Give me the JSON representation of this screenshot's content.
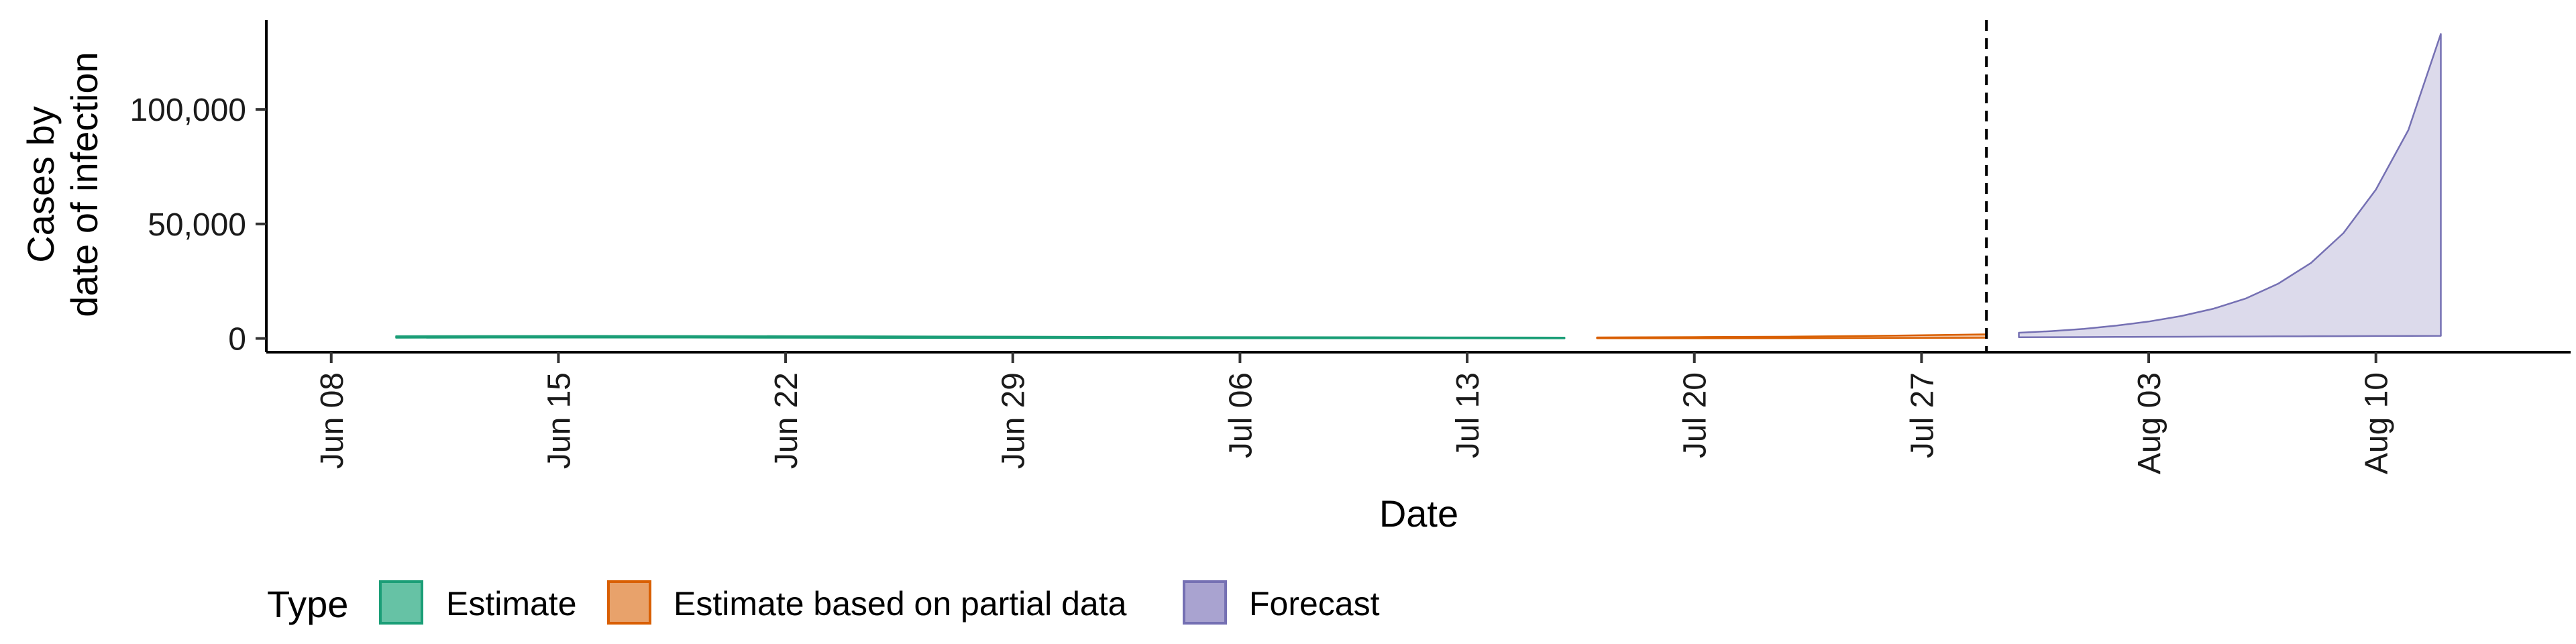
{
  "chart_data": {
    "type": "area",
    "xlabel": "Date",
    "ylabel_lines": [
      "Cases by",
      "date of infection"
    ],
    "x_ticks": [
      "2020-06-08",
      "2020-06-15",
      "2020-06-22",
      "2020-06-29",
      "2020-07-06",
      "2020-07-13",
      "2020-07-20",
      "2020-07-27",
      "2020-08-03",
      "2020-08-10"
    ],
    "x_tick_labels": [
      "Jun 08",
      "Jun 15",
      "Jun 22",
      "Jun 29",
      "Jul 06",
      "Jul 13",
      "Jul 20",
      "Jul 27",
      "Aug 03",
      "Aug 10"
    ],
    "xlim": [
      "2020-06-06",
      "2020-08-16"
    ],
    "y_ticks": [
      0,
      50000,
      100000
    ],
    "y_tick_labels": [
      "0",
      "50,000",
      "100,000"
    ],
    "ylim": [
      -6000,
      139000
    ],
    "grid": false,
    "vline_date": "2020-07-29",
    "legend": {
      "title": "Type",
      "position": "bottom",
      "entries": [
        {
          "label": "Estimate",
          "fill": "#66c2a5",
          "stroke": "#1b9e77"
        },
        {
          "label": "Estimate based on partial data",
          "fill": "#e8a26b",
          "stroke": "#d95f02"
        },
        {
          "label": "Forecast",
          "fill": "#a9a3d0",
          "stroke": "#7570b3"
        }
      ]
    },
    "series": [
      {
        "type_key": "Estimate",
        "color": "#1b9e77",
        "fill": "#a9dcc9",
        "x": [
          "2020-06-10",
          "2020-06-13",
          "2020-06-16",
          "2020-06-19",
          "2020-06-22",
          "2020-06-25",
          "2020-06-28",
          "2020-07-01",
          "2020-07-04",
          "2020-07-07",
          "2020-07-10",
          "2020-07-13",
          "2020-07-16"
        ],
        "upper": [
          1000,
          1050,
          1100,
          1050,
          1000,
          900,
          800,
          700,
          600,
          550,
          500,
          450,
          400
        ],
        "lower": [
          300,
          350,
          400,
          350,
          300,
          250,
          200,
          150,
          100,
          80,
          60,
          50,
          40
        ]
      },
      {
        "type_key": "Estimate based on partial data",
        "color": "#d95f02",
        "fill": "#f2c4a2",
        "x": [
          "2020-07-17",
          "2020-07-20",
          "2020-07-23",
          "2020-07-26",
          "2020-07-29"
        ],
        "upper": [
          450,
          600,
          800,
          1200,
          1800
        ],
        "lower": [
          50,
          80,
          120,
          200,
          300
        ]
      },
      {
        "type_key": "Forecast",
        "color": "#7570b3",
        "fill": "#dcdaeb",
        "x": [
          "2020-07-30",
          "2020-07-31",
          "2020-08-01",
          "2020-08-02",
          "2020-08-03",
          "2020-08-04",
          "2020-08-05",
          "2020-08-06",
          "2020-08-07",
          "2020-08-08",
          "2020-08-09",
          "2020-08-10",
          "2020-08-11",
          "2020-08-12"
        ],
        "upper": [
          2500,
          3200,
          4200,
          5600,
          7400,
          9800,
          13000,
          17500,
          24000,
          33000,
          46000,
          65000,
          91000,
          133000
        ],
        "lower": [
          500,
          550,
          600,
          650,
          700,
          750,
          800,
          850,
          900,
          950,
          1000,
          1050,
          1100,
          1150
        ]
      }
    ]
  }
}
